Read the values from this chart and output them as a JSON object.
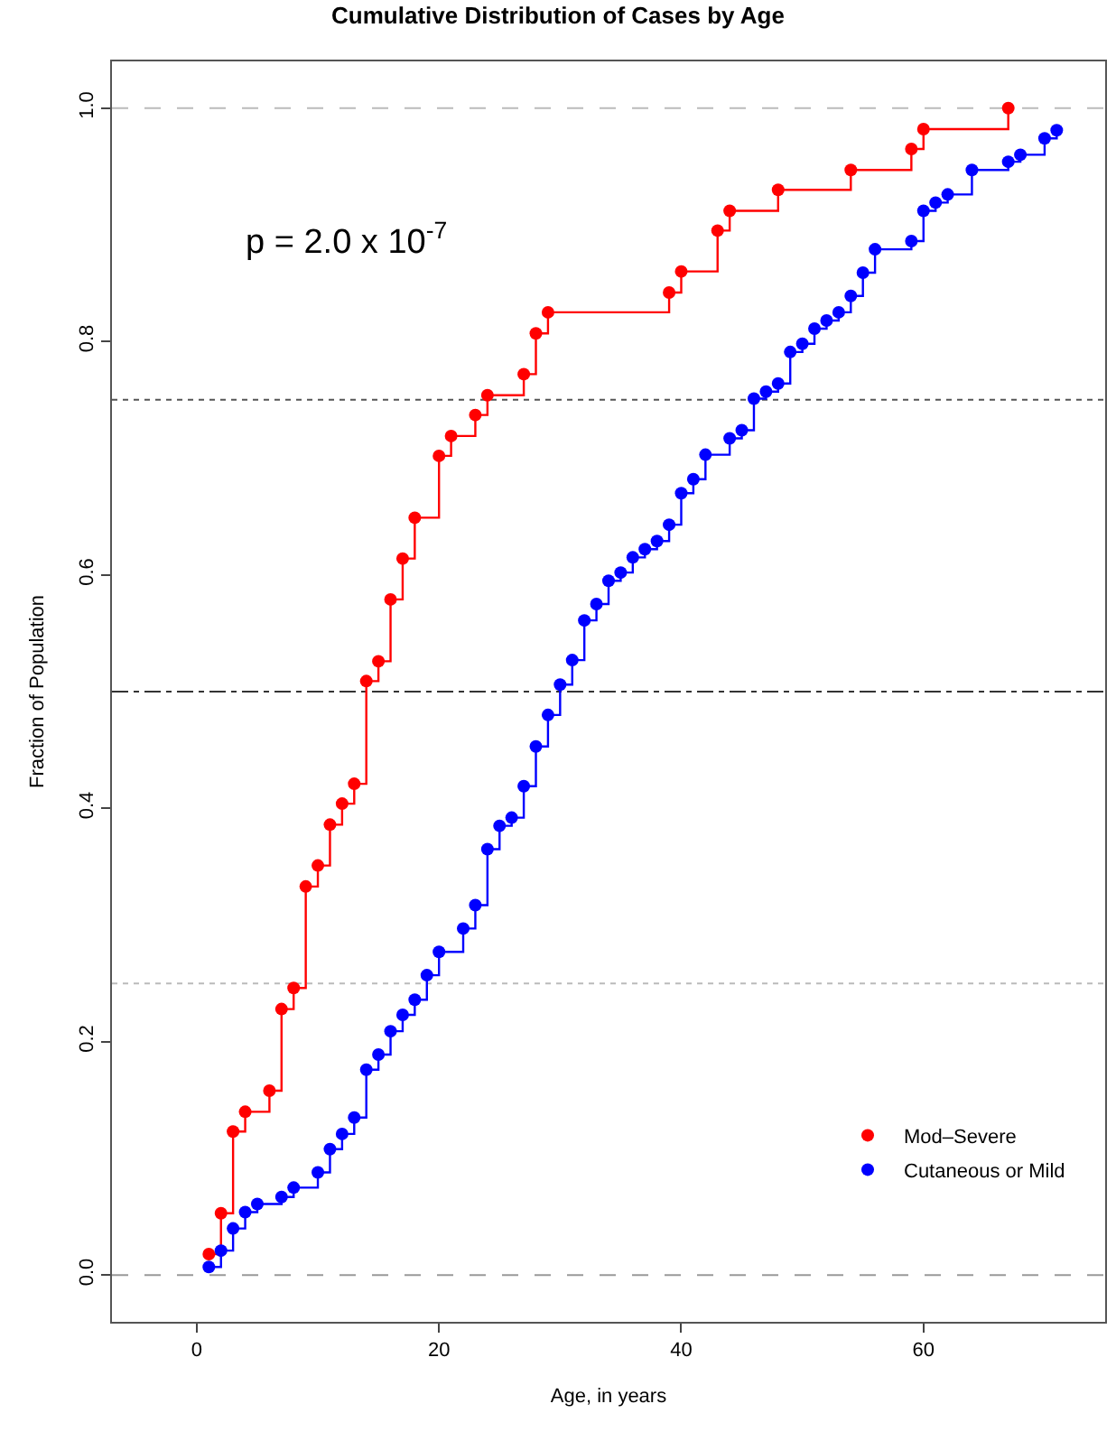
{
  "chart_data": {
    "type": "step",
    "title": "Cumulative Distribution of Cases by Age",
    "xlabel": "Age, in years",
    "ylabel": "Fraction of Population",
    "annotations": [
      "p = 2.0 x 10$^{-7}$"
    ],
    "xlim": [
      -7,
      75
    ],
    "xticks": [
      0,
      20,
      40,
      60
    ],
    "ylim": [
      -0.04,
      1.04
    ],
    "yticks": [
      {
        "value": 0,
        "label": "0.0"
      },
      {
        "value": 0.2,
        "label": "0.2"
      },
      {
        "value": 0.4,
        "label": "0.4"
      },
      {
        "value": 0.6,
        "label": "0.6"
      },
      {
        "value": 0.8,
        "label": "0.8"
      },
      {
        "value": 1,
        "label": "1.0"
      }
    ],
    "grid": false,
    "legend": "bottom right",
    "marker": "circle",
    "line_style": "solid",
    "ref_lines": [
      {
        "axis": "y",
        "value": 0,
        "color": "#999999",
        "line_style": "dashed"
      },
      {
        "axis": "y",
        "value": 0.25,
        "color": "#bbbbbb",
        "line_style": "dotted"
      },
      {
        "axis": "y",
        "value": 0.5,
        "color": "#333333",
        "line_style": "dashdot"
      },
      {
        "axis": "y",
        "value": 0.75,
        "color": "#555555",
        "line_style": "dotted"
      },
      {
        "axis": "y",
        "value": 1,
        "color": "#bbbbbb",
        "line_style": "dashed"
      }
    ],
    "series": [
      {
        "name": "Mod–Severe",
        "color": "#ff0000",
        "x": [
          1,
          2,
          3,
          4,
          6,
          7,
          8,
          9,
          10,
          11,
          12,
          13,
          14,
          15,
          16,
          17,
          18,
          20,
          21,
          23,
          24,
          27,
          28,
          29,
          39,
          40,
          43,
          44,
          48,
          54,
          59,
          60,
          67
        ],
        "values": [
          0.018,
          0.053,
          0.123,
          0.14,
          0.158,
          0.228,
          0.246,
          0.333,
          0.351,
          0.386,
          0.404,
          0.421,
          0.509,
          0.526,
          0.579,
          0.614,
          0.649,
          0.702,
          0.719,
          0.737,
          0.754,
          0.772,
          0.807,
          0.825,
          0.842,
          0.86,
          0.895,
          0.912,
          0.93,
          0.947,
          0.965,
          0.982,
          1.0
        ]
      },
      {
        "name": "Cutaneous or Mild",
        "color": "#0000ff",
        "x": [
          1,
          2,
          3,
          4,
          5,
          7,
          8,
          10,
          11,
          12,
          13,
          14,
          15,
          16,
          17,
          18,
          19,
          20,
          22,
          23,
          24,
          25,
          26,
          27,
          28,
          29,
          30,
          31,
          32,
          33,
          34,
          35,
          36,
          37,
          38,
          39,
          40,
          41,
          42,
          44,
          45,
          46,
          47,
          48,
          49,
          50,
          51,
          52,
          53,
          54,
          55,
          56,
          59,
          60,
          61,
          62,
          64,
          67,
          68,
          70,
          71
        ],
        "values": [
          0.007,
          0.021,
          0.04,
          0.054,
          0.061,
          0.067,
          0.075,
          0.088,
          0.108,
          0.121,
          0.135,
          0.176,
          0.189,
          0.209,
          0.223,
          0.236,
          0.257,
          0.277,
          0.297,
          0.317,
          0.365,
          0.385,
          0.392,
          0.419,
          0.453,
          0.48,
          0.506,
          0.527,
          0.561,
          0.575,
          0.595,
          0.602,
          0.615,
          0.622,
          0.629,
          0.643,
          0.67,
          0.682,
          0.703,
          0.717,
          0.724,
          0.751,
          0.757,
          0.764,
          0.791,
          0.798,
          0.811,
          0.818,
          0.825,
          0.839,
          0.859,
          0.879,
          0.886,
          0.912,
          0.919,
          0.926,
          0.947,
          0.954,
          0.96,
          0.974,
          0.981
        ]
      }
    ]
  }
}
